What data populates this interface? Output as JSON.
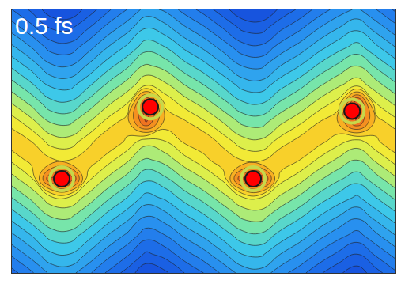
{
  "chart_data": {
    "type": "contour",
    "annotation": "0.5 fs",
    "tick_labels": false,
    "grid": false,
    "xlim": [
      0,
      10
    ],
    "ylim": [
      0,
      7
    ],
    "zlim": [
      0,
      10
    ],
    "x": [
      0,
      0.5,
      1,
      1.5,
      2,
      2.5,
      3,
      3.5,
      4,
      4.5,
      5,
      5.5,
      6,
      6.5,
      7,
      7.5,
      8,
      8.5,
      9,
      9.5,
      10
    ],
    "y": [
      0,
      0.5,
      1,
      1.5,
      2,
      2.5,
      3,
      3.5,
      4,
      4.5,
      5,
      5.5,
      6,
      6.5,
      7
    ],
    "z": [
      [
        1.8,
        2.4,
        3.1,
        3.2,
        2.6,
        1.9,
        1.3,
        0.6,
        0.9,
        1.5,
        2.0,
        2.6,
        3.2,
        3.3,
        2.7,
        2.2,
        1.6,
        1.1,
        0.7,
        1.3,
        1.9
      ],
      [
        2.6,
        3.2,
        3.9,
        4.0,
        3.4,
        2.7,
        2.1,
        1.4,
        1.7,
        2.3,
        2.8,
        3.4,
        4.0,
        4.1,
        3.5,
        3.0,
        2.4,
        1.9,
        1.5,
        2.1,
        2.7
      ],
      [
        3.4,
        4.0,
        4.7,
        4.8,
        4.2,
        3.5,
        2.9,
        2.2,
        2.5,
        3.1,
        3.6,
        4.2,
        4.8,
        4.9,
        4.3,
        3.8,
        3.2,
        2.7,
        2.3,
        2.9,
        3.5
      ],
      [
        4.2,
        4.8,
        5.5,
        5.6,
        5.0,
        4.3,
        3.7,
        3.0,
        3.3,
        3.9,
        4.4,
        5.0,
        5.6,
        5.7,
        5.1,
        4.6,
        4.0,
        3.5,
        3.1,
        3.7,
        4.3
      ],
      [
        5.0,
        5.6,
        6.3,
        6.4,
        5.8,
        5.1,
        4.5,
        3.8,
        4.1,
        4.7,
        5.2,
        5.8,
        6.4,
        6.5,
        5.9,
        5.4,
        4.8,
        4.3,
        3.9,
        4.5,
        5.1
      ],
      [
        5.8,
        6.4,
        9.0,
        9.5,
        6.6,
        5.9,
        5.3,
        4.6,
        4.9,
        5.5,
        6.0,
        6.6,
        9.0,
        9.5,
        6.7,
        6.2,
        5.6,
        5.1,
        4.7,
        5.3,
        5.9
      ],
      [
        6.6,
        7.2,
        7.1,
        7.0,
        7.4,
        6.7,
        6.1,
        5.4,
        5.7,
        6.3,
        6.8,
        7.4,
        7.0,
        6.9,
        7.5,
        7.0,
        6.4,
        5.9,
        5.5,
        6.1,
        6.7
      ],
      [
        7.4,
        7.0,
        6.3,
        6.2,
        6.8,
        7.5,
        6.9,
        6.2,
        6.5,
        7.1,
        7.4,
        6.8,
        6.2,
        6.1,
        6.7,
        7.2,
        7.2,
        6.7,
        6.3,
        6.9,
        7.5
      ],
      [
        6.8,
        6.2,
        5.5,
        5.4,
        6.0,
        6.7,
        7.3,
        9.0,
        7.3,
        7.1,
        6.6,
        6.0,
        5.4,
        5.3,
        5.9,
        6.4,
        7.0,
        7.5,
        9.0,
        7.3,
        6.7
      ],
      [
        6.0,
        5.4,
        4.7,
        4.6,
        5.2,
        5.9,
        6.5,
        9.5,
        6.9,
        6.3,
        5.8,
        5.2,
        4.6,
        4.5,
        5.1,
        5.6,
        6.2,
        6.7,
        9.5,
        6.5,
        5.9
      ],
      [
        5.2,
        4.6,
        3.9,
        3.8,
        4.4,
        5.1,
        5.7,
        6.4,
        6.1,
        5.5,
        5.0,
        4.4,
        3.8,
        3.7,
        4.3,
        4.8,
        5.4,
        5.9,
        6.3,
        5.7,
        5.1
      ],
      [
        4.4,
        3.8,
        3.1,
        3.0,
        3.6,
        4.3,
        4.9,
        5.6,
        5.3,
        4.7,
        4.2,
        3.6,
        3.0,
        2.9,
        3.5,
        4.0,
        4.6,
        5.1,
        5.5,
        4.9,
        4.3
      ],
      [
        3.6,
        3.0,
        2.3,
        2.2,
        2.8,
        3.5,
        4.1,
        4.8,
        4.5,
        3.9,
        3.4,
        2.8,
        2.2,
        2.1,
        2.7,
        3.2,
        3.8,
        4.3,
        4.7,
        4.1,
        3.5
      ],
      [
        2.8,
        2.2,
        1.5,
        1.4,
        2.0,
        2.7,
        3.3,
        4.0,
        3.7,
        3.1,
        2.6,
        2.0,
        1.4,
        1.3,
        1.9,
        2.4,
        3.0,
        3.5,
        3.9,
        3.3,
        2.7
      ],
      [
        2.0,
        1.4,
        0.7,
        0.6,
        1.2,
        1.9,
        2.5,
        3.2,
        2.9,
        2.3,
        1.8,
        1.2,
        0.6,
        0.5,
        1.1,
        1.6,
        2.2,
        2.7,
        3.1,
        2.5,
        1.9
      ]
    ],
    "points": {
      "x": [
        1.3,
        3.61,
        6.29,
        8.87
      ],
      "y": [
        2.5,
        4.41,
        2.5,
        4.3
      ],
      "color": "#ff0000",
      "marker": "circle"
    }
  }
}
